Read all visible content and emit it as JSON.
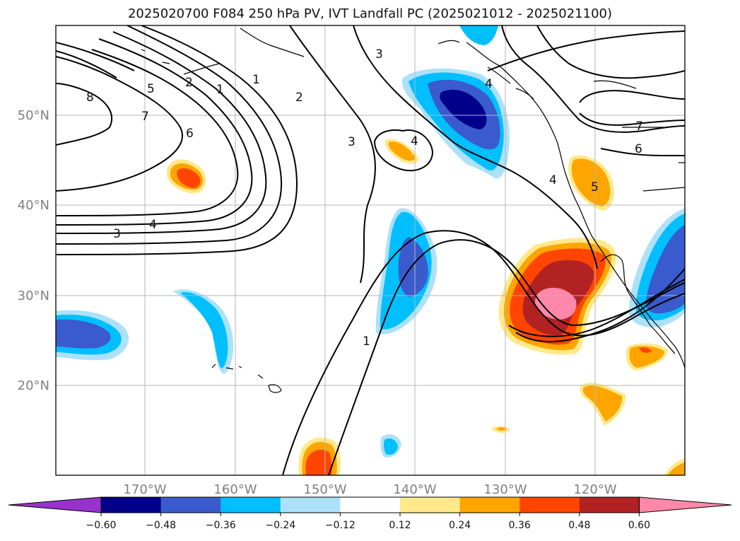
{
  "title": "2025020700 F084 250 hPa PV, IVT Landfall PC (2025021012 - 2025021100)",
  "map": {
    "lat_labels": [
      "50°N",
      "40°N",
      "30°N",
      "20°N"
    ],
    "lon_labels": [
      "170°W",
      "160°W",
      "150°W",
      "140°W",
      "130°W",
      "120°W"
    ],
    "contour_labels": [
      "8",
      "5",
      "7",
      "6",
      "2",
      "1",
      "1",
      "2",
      "3",
      "3",
      "4",
      "3",
      "4",
      "4",
      "1",
      "4",
      "5",
      "6",
      "7"
    ]
  },
  "colorbar": {
    "ticks": [
      "−0.60",
      "−0.48",
      "−0.36",
      "−0.24",
      "−0.12",
      "0.12",
      "0.24",
      "0.36",
      "0.48",
      "0.60"
    ],
    "colors": [
      "#9932cc",
      "#00008b",
      "#3a5bcd",
      "#00bfff",
      "#ade1f9",
      "#ffffff",
      "#ffe98a",
      "#ffa500",
      "#ff4500",
      "#b22222",
      "#ff88aa"
    ]
  }
}
